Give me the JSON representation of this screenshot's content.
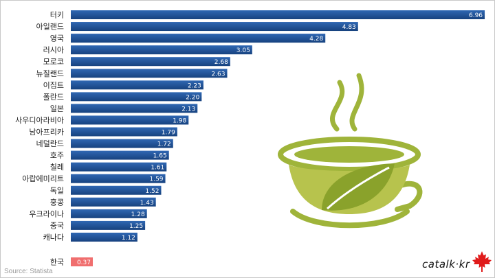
{
  "chart_data": {
    "type": "bar",
    "orientation": "horizontal",
    "categories": [
      "터키",
      "아일랜드",
      "영국",
      "러시아",
      "모로코",
      "뉴질랜드",
      "이집트",
      "폴란드",
      "일본",
      "사우디아라비아",
      "남아프리카",
      "네덜란드",
      "호주",
      "칠레",
      "아랍에미리트",
      "독일",
      "홍콩",
      "우크라이나",
      "중국",
      "캐나다"
    ],
    "values": [
      6.96,
      4.83,
      4.28,
      3.05,
      2.68,
      2.63,
      2.23,
      2.2,
      2.13,
      1.98,
      1.79,
      1.72,
      1.65,
      1.61,
      1.59,
      1.52,
      1.43,
      1.28,
      1.25,
      1.12
    ],
    "value_labels": [
      "6.96",
      "4.83",
      "4.28",
      "3.05",
      "2.68",
      "2.63",
      "2.23",
      "2.20",
      "2.13",
      "1.98",
      "1.79",
      "1.72",
      "1.65",
      "1.61",
      "1.59",
      "1.52",
      "1.43",
      "1.28",
      "1.25",
      "1.12"
    ],
    "highlight": {
      "category": "한국",
      "value": 0.37,
      "value_label": "0.37"
    },
    "xlim": [
      0,
      7
    ],
    "grid": false,
    "legend": "none",
    "title": "",
    "xlabel": "",
    "ylabel": "",
    "bar_color_top": "#2a5ea8",
    "bar_color_bottom": "#17427f",
    "highlight_color": "#f06e6e"
  },
  "footer": {
    "source": "Source: Statista",
    "brand": "catalk·kr"
  },
  "icons": {
    "decoration": "teacup-icon",
    "logo": "maple-leaf-icon"
  },
  "colors": {
    "cup_green": "#9fb43a",
    "maple_red": "#e01b1b"
  }
}
